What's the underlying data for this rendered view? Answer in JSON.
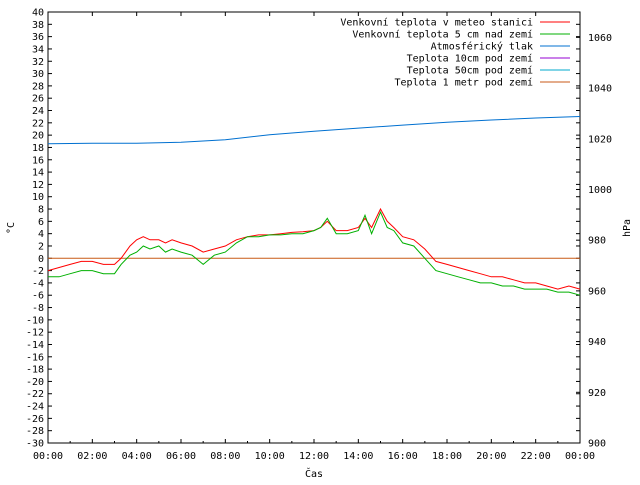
{
  "chart_data": {
    "type": "line",
    "xlabel": "Čas",
    "ylabel": "°C",
    "y2label": "hPa",
    "x_ticks": [
      "00:00",
      "02:00",
      "04:00",
      "06:00",
      "08:00",
      "10:00",
      "12:00",
      "14:00",
      "16:00",
      "18:00",
      "20:00",
      "22:00",
      "00:00"
    ],
    "x_range_hours": [
      0,
      24
    ],
    "ylim": [
      -30,
      40
    ],
    "y_ticks": [
      -30,
      -28,
      -26,
      -24,
      -22,
      -20,
      -18,
      -16,
      -14,
      -12,
      -10,
      -8,
      -6,
      -4,
      -2,
      0,
      2,
      4,
      6,
      8,
      10,
      12,
      14,
      16,
      18,
      20,
      22,
      24,
      26,
      28,
      30,
      32,
      34,
      36,
      38,
      40
    ],
    "y2lim": [
      900,
      1070
    ],
    "y2_ticks": [
      900,
      920,
      940,
      960,
      980,
      1000,
      1020,
      1040,
      1060
    ],
    "grid": false,
    "legend_position": "top-right",
    "hlines": [
      {
        "name": "Teplota 1 metr pod zemí",
        "y": 0,
        "color": "#c85a17"
      }
    ],
    "series": [
      {
        "name": "Venkovní teplota v meteo stanici",
        "color": "#ff0000",
        "axis": "left",
        "x": [
          0,
          0.5,
          1,
          1.5,
          2,
          2.5,
          3,
          3.3,
          3.7,
          4,
          4.3,
          4.6,
          5,
          5.3,
          5.6,
          6,
          6.5,
          7,
          7.5,
          8,
          8.5,
          9,
          9.5,
          10,
          10.5,
          11,
          11.5,
          12,
          12.3,
          12.6,
          13,
          13.5,
          14,
          14.3,
          14.6,
          15,
          15.3,
          15.6,
          16,
          16.5,
          17,
          17.5,
          18,
          18.5,
          19,
          19.5,
          20,
          20.5,
          21,
          21.5,
          22,
          22.5,
          23,
          23.5,
          24
        ],
        "values": [
          -2,
          -1.5,
          -1,
          -0.5,
          -0.5,
          -1,
          -1,
          0,
          2,
          3,
          3.5,
          3,
          3,
          2.5,
          3,
          2.5,
          2,
          1,
          1.5,
          2,
          3,
          3.5,
          3.8,
          3.8,
          4,
          4.2,
          4.3,
          4.5,
          5,
          6,
          4.5,
          4.5,
          5,
          6.5,
          5,
          8,
          6,
          5,
          3.5,
          3,
          1.5,
          -0.5,
          -1,
          -1.5,
          -2,
          -2.5,
          -3,
          -3,
          -3.5,
          -4,
          -4,
          -4.5,
          -5,
          -4.5,
          -5
        ]
      },
      {
        "name": "Venkovní teplota 5 cm nad zemí",
        "color": "#00b000",
        "axis": "left",
        "x": [
          0,
          0.5,
          1,
          1.5,
          2,
          2.5,
          3,
          3.3,
          3.7,
          4,
          4.3,
          4.6,
          5,
          5.3,
          5.6,
          6,
          6.5,
          7,
          7.5,
          8,
          8.5,
          9,
          9.5,
          10,
          10.5,
          11,
          11.5,
          12,
          12.3,
          12.6,
          13,
          13.5,
          14,
          14.3,
          14.6,
          15,
          15.3,
          15.6,
          16,
          16.5,
          17,
          17.5,
          18,
          18.5,
          19,
          19.5,
          20,
          20.5,
          21,
          21.5,
          22,
          22.5,
          23,
          23.5,
          24
        ],
        "values": [
          -3,
          -3,
          -2.5,
          -2,
          -2,
          -2.5,
          -2.5,
          -1,
          0.5,
          1,
          2,
          1.5,
          2,
          1,
          1.5,
          1,
          0.5,
          -1,
          0.5,
          1,
          2.5,
          3.5,
          3.5,
          3.8,
          3.8,
          4,
          4,
          4.5,
          5,
          6.5,
          4,
          4,
          4.5,
          7,
          4,
          7.5,
          5,
          4.5,
          2.5,
          2,
          0,
          -2,
          -2.5,
          -3,
          -3.5,
          -4,
          -4,
          -4.5,
          -4.5,
          -5,
          -5,
          -5,
          -5.5,
          -5.5,
          -6
        ]
      },
      {
        "name": "Atmosférický tlak",
        "color": "#0070d0",
        "axis": "right",
        "x": [
          0,
          2,
          4,
          6,
          8,
          10,
          12,
          14,
          16,
          18,
          20,
          22,
          24
        ],
        "values": [
          1018,
          1018.2,
          1018.2,
          1018.6,
          1019.6,
          1021.6,
          1023,
          1024.2,
          1025.4,
          1026.5,
          1027.4,
          1028.2,
          1028.8
        ]
      },
      {
        "name": "Teplota 10cm pod zemí",
        "color": "#9400d3",
        "axis": "left",
        "x": [],
        "values": []
      },
      {
        "name": "Teplota 50cm pod zemí",
        "color": "#00aacc",
        "axis": "left",
        "x": [],
        "values": []
      }
    ]
  }
}
